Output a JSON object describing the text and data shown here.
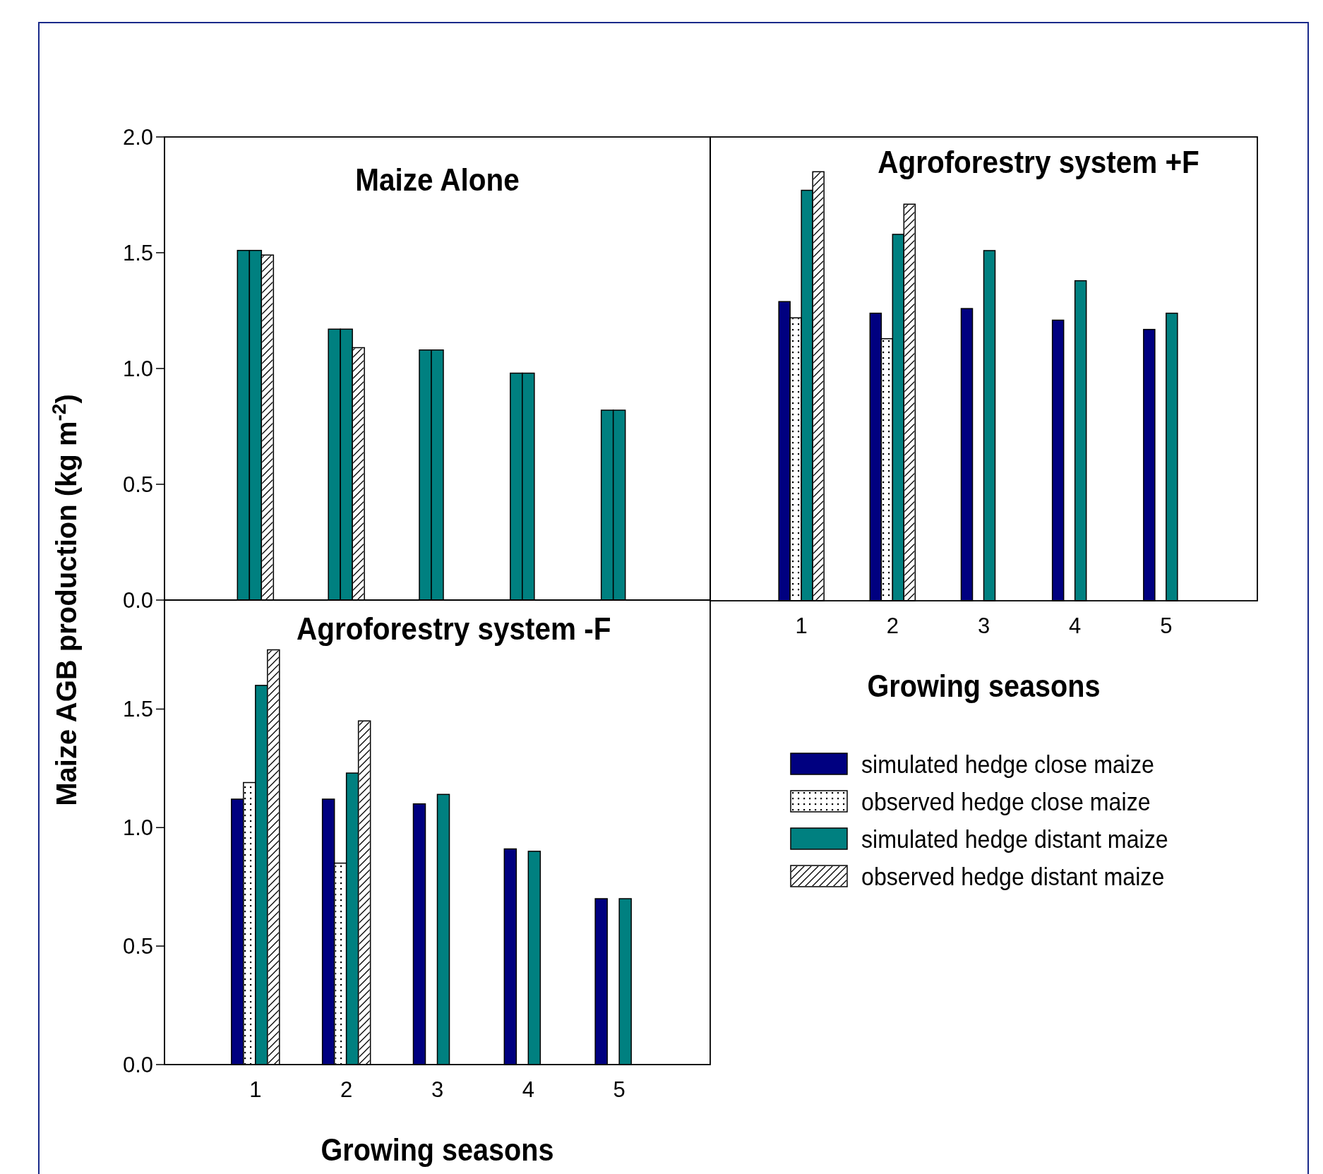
{
  "chart_data": [
    {
      "type": "bar",
      "title": "Maize Alone",
      "ylabel": "Maize AGB production (kg m$^{-2}$)",
      "categories": [
        "1",
        "2",
        "3",
        "4",
        "5"
      ],
      "ylim": [
        0,
        2
      ],
      "yticks": [
        {
          "value": 0,
          "label": "0.0"
        },
        {
          "value": 0.5,
          "label": "0.5"
        },
        {
          "value": 1,
          "label": "1.0"
        },
        {
          "value": 1.5,
          "label": "1.5"
        },
        {
          "value": 2,
          "label": "2.0"
        }
      ],
      "tick_labels": "y",
      "grid": false,
      "legend": false,
      "series": [
        {
          "color": "#008080",
          "values": [
            1.51,
            1.17,
            1.08,
            0.98,
            0.82
          ]
        },
        {
          "color": "#008080",
          "values": [
            1.51,
            1.17,
            1.08,
            0.98,
            0.82
          ]
        },
        {
          "color": "#ffffff",
          "values": [
            1.49,
            1.09,
            null,
            null,
            null
          ]
        }
      ]
    },
    {
      "type": "bar",
      "title": "Agroforestry system +F",
      "xlabel": "Growing seasons",
      "categories": [
        "1",
        "2",
        "3",
        "4",
        "5"
      ],
      "ylim": [
        0,
        2
      ],
      "tick_labels": "x",
      "grid": false,
      "legend": "bottom",
      "series": [
        {
          "name": "simulated hedge close maize",
          "color": "#000080",
          "values": [
            1.29,
            1.24,
            1.26,
            1.21,
            1.17
          ]
        },
        {
          "name": "observed hedge close maize",
          "color": "#ffffff",
          "values": [
            1.22,
            1.13,
            null,
            null,
            null
          ]
        },
        {
          "name": "simulated hedge distant maize",
          "color": "#008080",
          "values": [
            1.77,
            1.58,
            1.51,
            1.38,
            1.24
          ]
        },
        {
          "name": "observed hedge distant maize",
          "color": "#ffffff",
          "values": [
            1.85,
            1.71,
            null,
            null,
            null
          ]
        }
      ]
    },
    {
      "type": "bar",
      "title": "Agroforestry system -F",
      "xlabel": "Growing seasons",
      "categories": [
        "1",
        "2",
        "3",
        "4",
        "5"
      ],
      "ylim": [
        0,
        1.96
      ],
      "yticks": [
        {
          "value": 0,
          "label": "0.0"
        },
        {
          "value": 0.5,
          "label": "0.5"
        },
        {
          "value": 1,
          "label": "1.0"
        },
        {
          "value": 1.5,
          "label": "1.5"
        }
      ],
      "grid": false,
      "legend": false,
      "series": [
        {
          "color": "#000080",
          "values": [
            1.12,
            1.12,
            1.1,
            0.91,
            0.7
          ]
        },
        {
          "color": "#ffffff",
          "values": [
            1.19,
            0.85,
            null,
            null,
            null
          ]
        },
        {
          "color": "#008080",
          "values": [
            1.6,
            1.23,
            1.14,
            0.9,
            0.7
          ]
        },
        {
          "color": "#ffffff",
          "values": [
            1.75,
            1.45,
            null,
            null,
            null
          ]
        }
      ]
    }
  ]
}
